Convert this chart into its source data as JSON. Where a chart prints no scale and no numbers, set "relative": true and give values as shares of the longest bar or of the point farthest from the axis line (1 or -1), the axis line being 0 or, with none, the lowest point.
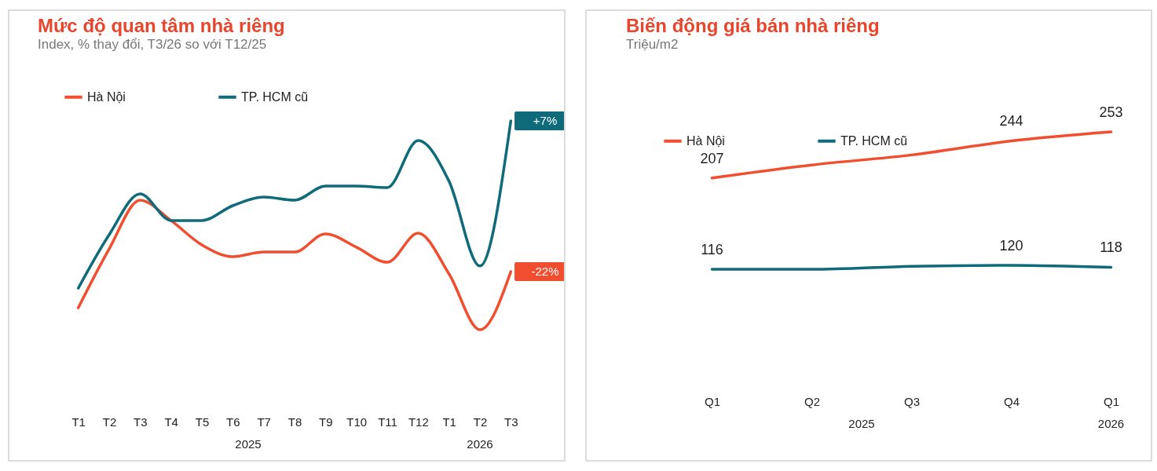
{
  "chart_data": [
    {
      "type": "line",
      "title": "Mức độ quan tâm nhà riêng",
      "subtitle": "Index, % thay đổi, T3/26 so với T12/25",
      "relative": true,
      "legend": "top",
      "grid": false,
      "marker": "none",
      "line_style": "solid",
      "categories": [
        "T1",
        "T2",
        "T3",
        "T4",
        "T5",
        "T6",
        "T7",
        "T8",
        "T9",
        "T10",
        "T11",
        "T12",
        "T1",
        "T2",
        "T3"
      ],
      "annotations": [
        "2025",
        "2026",
        "-22%",
        "+7%"
      ],
      "series": [
        {
          "name": "Hà Nội",
          "color": "#f04e2f",
          "values": [
            0.105,
            0.387,
            0.62,
            0.523,
            0.406,
            0.35,
            0.372,
            0.372,
            0.459,
            0.395,
            0.323,
            0.462,
            0.267,
            0,
            0.278
          ]
        },
        {
          "name": "TP. HCM cũ",
          "color": "#0f6b7a",
          "values": [
            0.199,
            0.455,
            0.65,
            0.523,
            0.523,
            0.594,
            0.635,
            0.62,
            0.688,
            0.688,
            0.68,
            0.906,
            0.711,
            0.305,
            1
          ]
        }
      ]
    },
    {
      "type": "line",
      "title": "Biến động giá bán nhà riêng",
      "subtitle": "Triệu/m2",
      "legend": "top",
      "grid": false,
      "marker": "none",
      "line_style": "solid",
      "categories": [
        "Q1",
        "Q2",
        "Q3",
        "Q4",
        "Q1"
      ],
      "annotations": [
        "2025",
        "2026"
      ],
      "series": [
        {
          "name": "Hà Nội",
          "color": "#f04e2f",
          "values": [
            207,
            220,
            230,
            244,
            253
          ],
          "value_labels": [
            "207",
            null,
            null,
            "244",
            "253"
          ]
        },
        {
          "name": "TP. HCM cũ",
          "color": "#0f6b7a",
          "values": [
            116,
            116,
            119,
            120,
            118
          ],
          "value_labels": [
            "116",
            null,
            null,
            "120",
            "118"
          ]
        }
      ]
    }
  ]
}
